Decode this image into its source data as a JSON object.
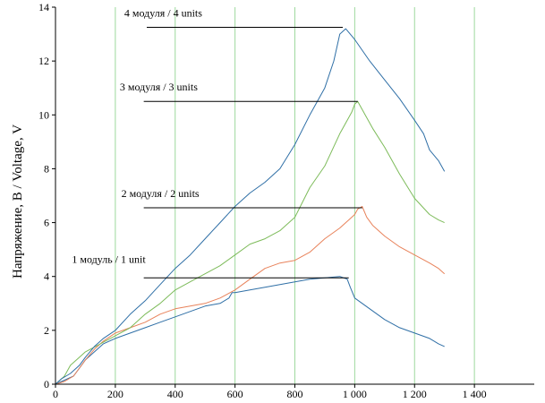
{
  "chart_data": {
    "type": "line",
    "title": "",
    "xlabel": "",
    "ylabel": "Напряжение, В / Voltage, V",
    "xlim": [
      0,
      1600
    ],
    "ylim": [
      0,
      14
    ],
    "x_ticks": [
      0,
      200,
      400,
      600,
      800,
      1000,
      1200,
      1400
    ],
    "x_tick_labels": [
      "0",
      "200",
      "400",
      "600",
      "800",
      "1 000",
      "1 200",
      "1 400"
    ],
    "y_ticks": [
      0,
      2,
      4,
      6,
      8,
      10,
      12,
      14
    ],
    "y_tick_labels": [
      "0",
      "2",
      "4",
      "6",
      "8",
      "10",
      "12",
      "14"
    ],
    "grid": {
      "vertical": true,
      "horizontal": false,
      "color": "#9ed99e"
    },
    "series": [
      {
        "color": "#2f6fa6",
        "points": [
          [
            0,
            0
          ],
          [
            20,
            0.1
          ],
          [
            40,
            0.2
          ],
          [
            60,
            0.3
          ],
          [
            80,
            0.6
          ],
          [
            100,
            0.9
          ],
          [
            130,
            1.2
          ],
          [
            160,
            1.5
          ],
          [
            200,
            1.7
          ],
          [
            250,
            1.9
          ],
          [
            300,
            2.1
          ],
          [
            350,
            2.3
          ],
          [
            400,
            2.5
          ],
          [
            450,
            2.7
          ],
          [
            500,
            2.9
          ],
          [
            550,
            3.0
          ],
          [
            580,
            3.2
          ],
          [
            590,
            3.4
          ],
          [
            600,
            3.4
          ],
          [
            650,
            3.5
          ],
          [
            700,
            3.6
          ],
          [
            750,
            3.7
          ],
          [
            800,
            3.8
          ],
          [
            850,
            3.9
          ],
          [
            900,
            3.95
          ],
          [
            950,
            4.0
          ],
          [
            975,
            3.9
          ],
          [
            985,
            3.6
          ],
          [
            1000,
            3.2
          ],
          [
            1050,
            2.8
          ],
          [
            1100,
            2.4
          ],
          [
            1150,
            2.1
          ],
          [
            1200,
            1.9
          ],
          [
            1250,
            1.7
          ],
          [
            1280,
            1.5
          ],
          [
            1300,
            1.4
          ]
        ]
      },
      {
        "color": "#e8825a",
        "points": [
          [
            0,
            0
          ],
          [
            30,
            0.1
          ],
          [
            60,
            0.3
          ],
          [
            80,
            0.6
          ],
          [
            100,
            0.9
          ],
          [
            130,
            1.3
          ],
          [
            160,
            1.6
          ],
          [
            200,
            1.9
          ],
          [
            250,
            2.1
          ],
          [
            300,
            2.3
          ],
          [
            350,
            2.6
          ],
          [
            400,
            2.8
          ],
          [
            450,
            2.9
          ],
          [
            500,
            3.0
          ],
          [
            550,
            3.2
          ],
          [
            600,
            3.5
          ],
          [
            650,
            3.9
          ],
          [
            700,
            4.3
          ],
          [
            750,
            4.5
          ],
          [
            800,
            4.6
          ],
          [
            850,
            4.9
          ],
          [
            900,
            5.4
          ],
          [
            950,
            5.8
          ],
          [
            980,
            6.1
          ],
          [
            1000,
            6.3
          ],
          [
            1010,
            6.5
          ],
          [
            1025,
            6.6
          ],
          [
            1040,
            6.2
          ],
          [
            1060,
            5.9
          ],
          [
            1080,
            5.7
          ],
          [
            1100,
            5.5
          ],
          [
            1150,
            5.1
          ],
          [
            1200,
            4.8
          ],
          [
            1250,
            4.5
          ],
          [
            1280,
            4.3
          ],
          [
            1300,
            4.1
          ]
        ]
      },
      {
        "color": "#7dbb5a",
        "points": [
          [
            0,
            0
          ],
          [
            30,
            0.3
          ],
          [
            50,
            0.7
          ],
          [
            80,
            1.0
          ],
          [
            100,
            1.2
          ],
          [
            150,
            1.5
          ],
          [
            200,
            1.8
          ],
          [
            250,
            2.1
          ],
          [
            300,
            2.6
          ],
          [
            350,
            3.0
          ],
          [
            400,
            3.5
          ],
          [
            450,
            3.8
          ],
          [
            500,
            4.1
          ],
          [
            550,
            4.4
          ],
          [
            600,
            4.8
          ],
          [
            650,
            5.2
          ],
          [
            700,
            5.4
          ],
          [
            750,
            5.7
          ],
          [
            800,
            6.2
          ],
          [
            850,
            7.3
          ],
          [
            900,
            8.1
          ],
          [
            950,
            9.3
          ],
          [
            990,
            10.1
          ],
          [
            1000,
            10.4
          ],
          [
            1010,
            10.5
          ],
          [
            1030,
            10.1
          ],
          [
            1060,
            9.5
          ],
          [
            1100,
            8.8
          ],
          [
            1150,
            7.8
          ],
          [
            1200,
            6.9
          ],
          [
            1250,
            6.3
          ],
          [
            1280,
            6.1
          ],
          [
            1300,
            6.0
          ]
        ]
      },
      {
        "color": "#2f6fa6",
        "points": [
          [
            0,
            0
          ],
          [
            20,
            0.2
          ],
          [
            50,
            0.4
          ],
          [
            80,
            0.7
          ],
          [
            100,
            1.0
          ],
          [
            130,
            1.4
          ],
          [
            160,
            1.7
          ],
          [
            200,
            2.0
          ],
          [
            250,
            2.6
          ],
          [
            300,
            3.1
          ],
          [
            350,
            3.7
          ],
          [
            400,
            4.3
          ],
          [
            450,
            4.8
          ],
          [
            500,
            5.4
          ],
          [
            550,
            6.0
          ],
          [
            600,
            6.6
          ],
          [
            650,
            7.1
          ],
          [
            700,
            7.5
          ],
          [
            750,
            8.0
          ],
          [
            800,
            8.9
          ],
          [
            850,
            10.0
          ],
          [
            900,
            11.0
          ],
          [
            930,
            12.0
          ],
          [
            950,
            13.0
          ],
          [
            970,
            13.2
          ],
          [
            1000,
            12.8
          ],
          [
            1050,
            12.0
          ],
          [
            1100,
            11.3
          ],
          [
            1150,
            10.6
          ],
          [
            1200,
            9.8
          ],
          [
            1230,
            9.3
          ],
          [
            1250,
            8.7
          ],
          [
            1280,
            8.3
          ],
          [
            1300,
            7.9
          ]
        ]
      }
    ],
    "annotations": [
      {
        "text": "1 модуль / 1 unit",
        "label_x": 55,
        "label_y": 4.5,
        "line_x": [
          295,
          980
        ],
        "line_y": 3.95
      },
      {
        "text": "2 модуля  / 2 units",
        "label_x": 220,
        "label_y": 6.95,
        "line_x": [
          295,
          1025
        ],
        "line_y": 6.55
      },
      {
        "text": "3 модуля  / 3 units",
        "label_x": 215,
        "label_y": 10.9,
        "line_x": [
          295,
          1010
        ],
        "line_y": 10.5
      },
      {
        "text": "4 модуля  / 4 units",
        "label_x": 230,
        "label_y": 13.65,
        "line_x": [
          305,
          960
        ],
        "line_y": 13.25
      }
    ]
  }
}
